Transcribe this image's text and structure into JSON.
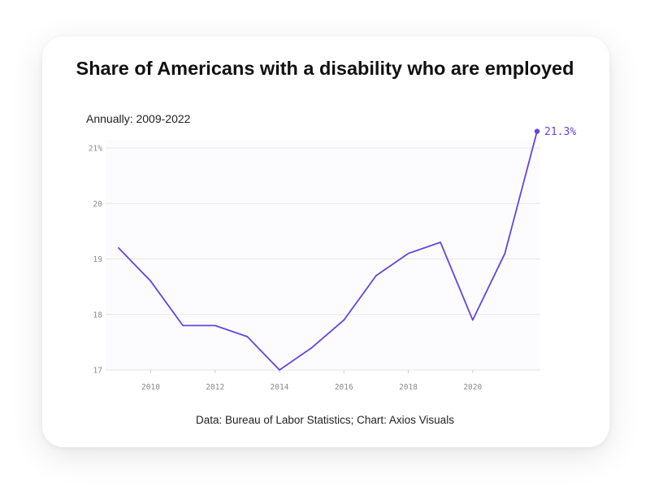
{
  "chart_data": {
    "type": "line",
    "title": "Share of Americans with a disability who are employed",
    "subtitle": "Annually: 2009-2022",
    "source": "Data: Bureau of Labor Statistics; Chart: Axios Visuals",
    "x": [
      2009,
      2010,
      2011,
      2012,
      2013,
      2014,
      2015,
      2016,
      2017,
      2018,
      2019,
      2020,
      2021,
      2022
    ],
    "values": [
      19.2,
      18.6,
      17.8,
      17.8,
      17.6,
      17.0,
      17.4,
      17.9,
      18.7,
      19.1,
      19.3,
      17.9,
      19.1,
      21.3
    ],
    "x_ticks": [
      2010,
      2012,
      2014,
      2016,
      2018,
      2020
    ],
    "y_ticks": [
      {
        "value": 17,
        "label": "17"
      },
      {
        "value": 18,
        "label": "18"
      },
      {
        "value": 19,
        "label": "19"
      },
      {
        "value": 20,
        "label": "20"
      },
      {
        "value": 21,
        "label": "21%"
      }
    ],
    "ylim": [
      17,
      21
    ],
    "xlim": [
      2008.6,
      2022.1
    ],
    "end_label": "21.3%",
    "grid": true,
    "line_color": "#6644e0",
    "grid_color": "#e6e6e6",
    "plot_bg": "#fcfcfe"
  }
}
